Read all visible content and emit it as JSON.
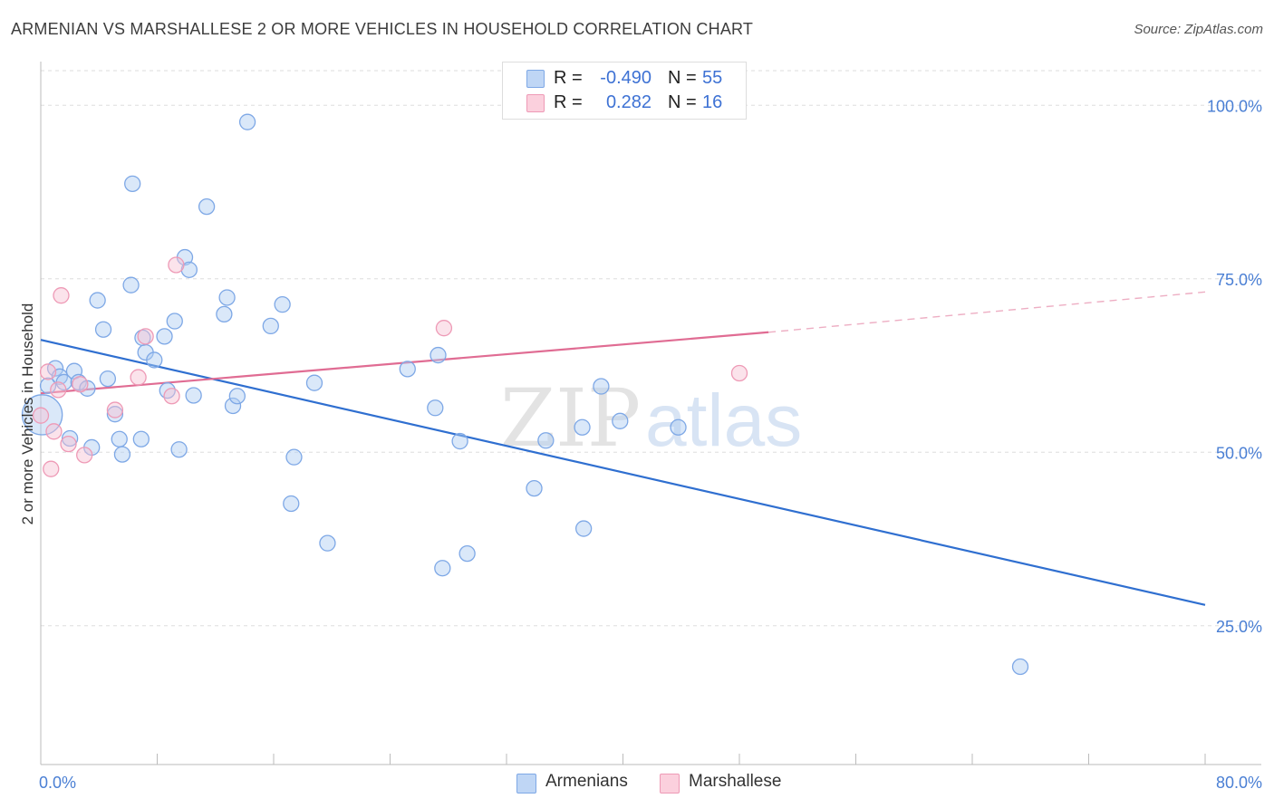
{
  "header": {
    "title": "ARMENIAN VS MARSHALLESE 2 OR MORE VEHICLES IN HOUSEHOLD CORRELATION CHART",
    "source": "Source: ZipAtlas.com"
  },
  "watermark": {
    "zip": "ZIP",
    "atlas": "atlas"
  },
  "legend": {
    "armenians": {
      "r_label": "R =",
      "r_value": "-0.490",
      "n_label": "N =",
      "n_value": "55"
    },
    "marshallese": {
      "r_label": "R =",
      "r_value": "0.282",
      "n_label": "N =",
      "n_value": "16"
    }
  },
  "bottom_legend": {
    "armenians": "Armenians",
    "marshallese": "Marshallese"
  },
  "colors": {
    "blue_fill": "#aecbf2",
    "blue_stroke": "#7ea8e6",
    "blue_line": "#2f6fd0",
    "pink_fill": "#f7c2d3",
    "pink_stroke": "#ee9ab6",
    "pink_line": "#e06c93",
    "axis_text": "#4a7fd4",
    "grid": "#dedede"
  },
  "chart_data": {
    "type": "scatter",
    "title": "ARMENIAN VS MARSHALLESE 2 OR MORE VEHICLES IN HOUSEHOLD CORRELATION CHART",
    "xlabel": "",
    "ylabel": "2 or more Vehicles in Household",
    "xlim": [
      0,
      80
    ],
    "ylim": [
      5,
      105
    ],
    "x_tick_labels": [
      "0.0%",
      "80.0%"
    ],
    "y_ticks": [
      25,
      50,
      75,
      100
    ],
    "y_tick_labels": [
      "25.0%",
      "50.0%",
      "75.0%",
      "100.0%"
    ],
    "series": [
      {
        "name": "Armenians",
        "points": [
          [
            0.1,
            55.4,
            2.6
          ],
          [
            0.5,
            59.6,
            1
          ],
          [
            1.0,
            62.1,
            1
          ],
          [
            1.3,
            60.9,
            1
          ],
          [
            1.6,
            60.1,
            1
          ],
          [
            2.0,
            52.0,
            1
          ],
          [
            2.3,
            61.7,
            1
          ],
          [
            2.6,
            60.1,
            1
          ],
          [
            3.2,
            59.2,
            1
          ],
          [
            3.5,
            50.7,
            1
          ],
          [
            3.9,
            71.9,
            1
          ],
          [
            4.3,
            67.7,
            1
          ],
          [
            4.6,
            60.6,
            1
          ],
          [
            5.1,
            55.5,
            1
          ],
          [
            5.4,
            51.9,
            1
          ],
          [
            5.6,
            49.7,
            1
          ],
          [
            6.2,
            74.1,
            1
          ],
          [
            6.3,
            88.7,
            1
          ],
          [
            6.9,
            51.9,
            1
          ],
          [
            7.0,
            66.5,
            1
          ],
          [
            7.2,
            64.4,
            1
          ],
          [
            7.8,
            63.3,
            1
          ],
          [
            8.5,
            66.7,
            1
          ],
          [
            8.7,
            58.9,
            1
          ],
          [
            9.2,
            68.9,
            1
          ],
          [
            9.5,
            50.4,
            1
          ],
          [
            9.9,
            78.1,
            1
          ],
          [
            10.2,
            76.3,
            1
          ],
          [
            10.5,
            58.2,
            1
          ],
          [
            11.4,
            85.4,
            1
          ],
          [
            12.6,
            69.9,
            1
          ],
          [
            12.8,
            72.3,
            1
          ],
          [
            13.2,
            56.7,
            1
          ],
          [
            13.5,
            58.1,
            1
          ],
          [
            14.2,
            97.6,
            1
          ],
          [
            15.8,
            68.2,
            1
          ],
          [
            16.6,
            71.3,
            1
          ],
          [
            17.2,
            42.6,
            1
          ],
          [
            17.4,
            49.3,
            1
          ],
          [
            18.8,
            60.0,
            1
          ],
          [
            19.7,
            36.9,
            1
          ],
          [
            25.2,
            62.0,
            1
          ],
          [
            27.1,
            56.4,
            1
          ],
          [
            27.3,
            64.0,
            1
          ],
          [
            27.6,
            33.3,
            1
          ],
          [
            28.8,
            51.6,
            1
          ],
          [
            29.3,
            35.4,
            1
          ],
          [
            33.9,
            44.8,
            1
          ],
          [
            34.7,
            51.7,
            1
          ],
          [
            37.2,
            53.6,
            1
          ],
          [
            37.3,
            39.0,
            1
          ],
          [
            38.5,
            59.5,
            1
          ],
          [
            39.8,
            54.5,
            1
          ],
          [
            43.8,
            53.6,
            1
          ],
          [
            67.3,
            19.1,
            1
          ]
        ],
        "trend": {
          "x": [
            0,
            80
          ],
          "y": [
            66.2,
            28.0
          ]
        }
      },
      {
        "name": "Marshallese",
        "points": [
          [
            0.0,
            55.3,
            1
          ],
          [
            0.5,
            61.6,
            1
          ],
          [
            0.7,
            47.6,
            1
          ],
          [
            0.9,
            53.0,
            1
          ],
          [
            1.2,
            59.0,
            1
          ],
          [
            1.4,
            72.6,
            1
          ],
          [
            1.9,
            51.2,
            1
          ],
          [
            2.7,
            59.8,
            1
          ],
          [
            3.0,
            49.6,
            1
          ],
          [
            5.1,
            56.1,
            1
          ],
          [
            6.7,
            60.8,
            1
          ],
          [
            7.2,
            66.7,
            1
          ],
          [
            9.0,
            58.1,
            1
          ],
          [
            9.3,
            77.0,
            1
          ],
          [
            27.7,
            67.9,
            1
          ],
          [
            48.0,
            61.4,
            1
          ]
        ],
        "trend": {
          "x": [
            0,
            50
          ],
          "y": [
            58.5,
            67.3
          ]
        },
        "trend_dashed": {
          "x": [
            50,
            80
          ],
          "y": [
            67.3,
            73.1
          ]
        }
      }
    ]
  }
}
